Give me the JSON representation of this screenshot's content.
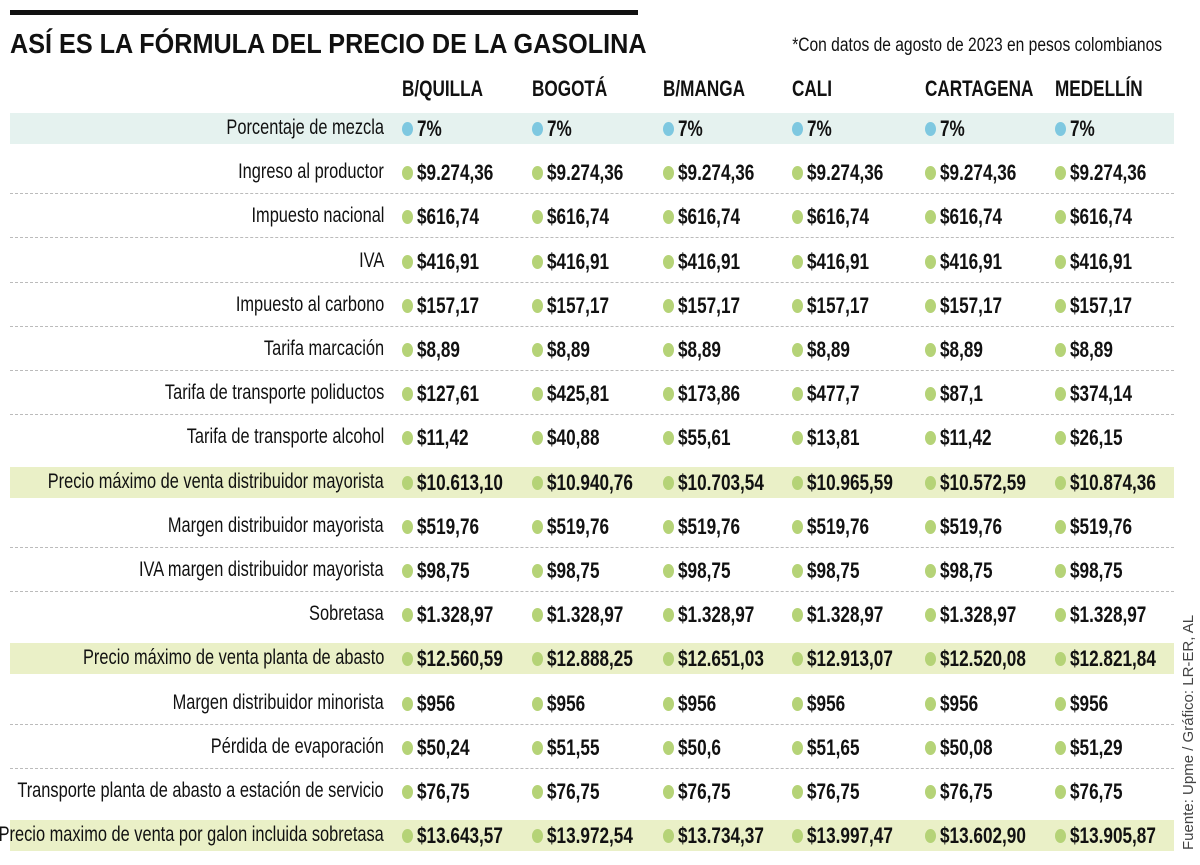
{
  "header": {
    "title": "ASÍ ES LA FÓRMULA DEL PRECIO DE LA GASOLINA",
    "note": "*Con datos de agosto de 2023 en pesos colombianos"
  },
  "source": "Fuente: Upme / Gráfico: LR-ER, AL",
  "colors": {
    "green_dot": "#b5d377",
    "blue_dot": "#7ec8e0",
    "highlight": "#eaf0c7",
    "mix_band": "#e5f2ef"
  },
  "chart_data": {
    "type": "table",
    "title": "ASÍ ES LA FÓRMULA DEL PRECIO DE LA GASOLINA",
    "columns": [
      "B/QUILLA",
      "BOGOTÁ",
      "B/MANGA",
      "CALI",
      "CARTAGENA",
      "MEDELLÍN"
    ],
    "rows": [
      {
        "label": "Porcentaje de mezcla",
        "style": "mix",
        "values": [
          "7%",
          "7%",
          "7%",
          "7%",
          "7%",
          "7%"
        ]
      },
      {
        "label": "Ingreso al productor",
        "values": [
          "$9.274,36",
          "$9.274,36",
          "$9.274,36",
          "$9.274,36",
          "$9.274,36",
          "$9.274,36"
        ]
      },
      {
        "label": "Impuesto nacional",
        "values": [
          "$616,74",
          "$616,74",
          "$616,74",
          "$616,74",
          "$616,74",
          "$616,74"
        ]
      },
      {
        "label": "IVA",
        "values": [
          "$416,91",
          "$416,91",
          "$416,91",
          "$416,91",
          "$416,91",
          "$416,91"
        ]
      },
      {
        "label": "Impuesto al carbono",
        "values": [
          "$157,17",
          "$157,17",
          "$157,17",
          "$157,17",
          "$157,17",
          "$157,17"
        ]
      },
      {
        "label": "Tarifa marcación",
        "values": [
          "$8,89",
          "$8,89",
          "$8,89",
          "$8,89",
          "$8,89",
          "$8,89"
        ]
      },
      {
        "label": "Tarifa de transporte poliductos",
        "values": [
          "$127,61",
          "$425,81",
          "$173,86",
          "$477,7",
          "$87,1",
          "$374,14"
        ]
      },
      {
        "label": "Tarifa de transporte alcohol",
        "values": [
          "$11,42",
          "$40,88",
          "$55,61",
          "$13,81",
          "$11,42",
          "$26,15"
        ]
      },
      {
        "label": "Precio máximo de venta distribuidor mayorista",
        "style": "hl",
        "values": [
          "$10.613,10",
          "$10.940,76",
          "$10.703,54",
          "$10.965,59",
          "$10.572,59",
          "$10.874,36"
        ]
      },
      {
        "label": "Margen distribuidor mayorista",
        "values": [
          "$519,76",
          "$519,76",
          "$519,76",
          "$519,76",
          "$519,76",
          "$519,76"
        ]
      },
      {
        "label": "IVA margen distribuidor mayorista",
        "values": [
          "$98,75",
          "$98,75",
          "$98,75",
          "$98,75",
          "$98,75",
          "$98,75"
        ]
      },
      {
        "label": "Sobretasa",
        "values": [
          "$1.328,97",
          "$1.328,97",
          "$1.328,97",
          "$1.328,97",
          "$1.328,97",
          "$1.328,97"
        ]
      },
      {
        "label": "Precio máximo de venta planta de abasto",
        "style": "hl",
        "values": [
          "$12.560,59",
          "$12.888,25",
          "$12.651,03",
          "$12.913,07",
          "$12.520,08",
          "$12.821,84"
        ]
      },
      {
        "label": "Margen distribuidor minorista",
        "values": [
          "$956",
          "$956",
          "$956",
          "$956",
          "$956",
          "$956"
        ]
      },
      {
        "label": "Pérdida de evaporación",
        "values": [
          "$50,24",
          "$51,55",
          "$50,6",
          "$51,65",
          "$50,08",
          "$51,29"
        ]
      },
      {
        "label": "Transporte planta de abasto a estación de servicio",
        "values": [
          "$76,75",
          "$76,75",
          "$76,75",
          "$76,75",
          "$76,75",
          "$76,75"
        ]
      },
      {
        "label": "Precio maximo de venta por galon incluida sobretasa",
        "style": "hl",
        "values": [
          "$13.643,57",
          "$13.972,54",
          "$13.734,37",
          "$13.997,47",
          "$13.602,90",
          "$13.905,87"
        ]
      }
    ]
  }
}
